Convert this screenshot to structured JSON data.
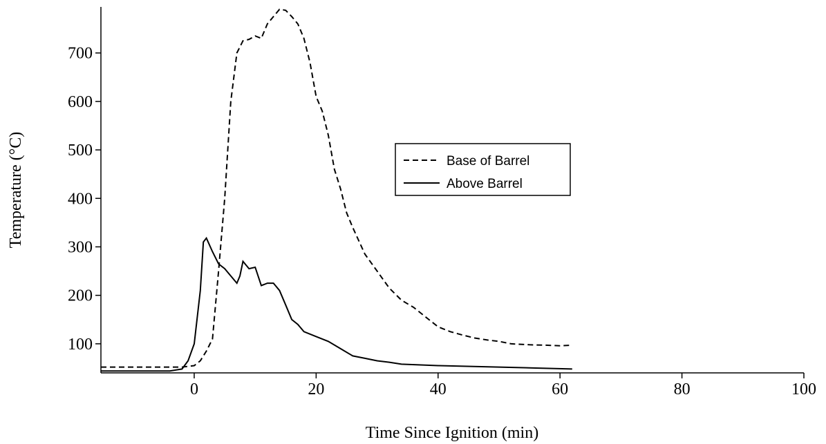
{
  "chart_data": {
    "type": "line",
    "x_label": "Time Since Ignition (min)",
    "y_label": "Temperature (°C)",
    "xlim": [
      -15.3,
      100
    ],
    "ylim": [
      40,
      795
    ],
    "xticks": [
      0,
      20,
      40,
      60,
      80,
      100
    ],
    "yticks": [
      100,
      200,
      300,
      400,
      500,
      600,
      700
    ],
    "series": [
      {
        "name": "Base of Barrel",
        "color": "#000000",
        "dash": true,
        "x": [
          -15.3,
          -2,
          0,
          1,
          2,
          3,
          4,
          5,
          6,
          7,
          8,
          9,
          10,
          11,
          12,
          13,
          14,
          15,
          16,
          17,
          18,
          19,
          20,
          21,
          22,
          23,
          24,
          25,
          26,
          28,
          30,
          32,
          34,
          36,
          38,
          40,
          42,
          44,
          46,
          48,
          50,
          52,
          55,
          58,
          60,
          62
        ],
        "values": [
          52,
          52,
          55,
          65,
          85,
          110,
          250,
          400,
          600,
          700,
          725,
          728,
          735,
          730,
          760,
          775,
          790,
          788,
          775,
          760,
          730,
          680,
          610,
          580,
          530,
          460,
          420,
          370,
          340,
          285,
          250,
          215,
          190,
          175,
          155,
          135,
          125,
          118,
          112,
          108,
          105,
          100,
          98,
          97,
          96,
          97
        ]
      },
      {
        "name": "Above Barrel",
        "color": "#000000",
        "dash": false,
        "x": [
          -15.3,
          -4,
          -2,
          -1,
          0,
          1,
          1.5,
          2,
          3,
          4,
          5,
          6,
          7,
          7.5,
          8,
          9,
          10,
          11,
          12,
          13,
          14,
          15,
          16,
          17,
          18,
          20,
          22,
          24,
          26,
          28,
          30,
          32,
          34,
          40,
          50,
          56,
          62
        ],
        "values": [
          44,
          44,
          48,
          65,
          100,
          210,
          310,
          318,
          290,
          265,
          255,
          240,
          225,
          240,
          270,
          255,
          258,
          220,
          225,
          225,
          210,
          180,
          150,
          140,
          125,
          115,
          105,
          90,
          75,
          70,
          65,
          62,
          58,
          55,
          52,
          50,
          48
        ]
      }
    ]
  }
}
